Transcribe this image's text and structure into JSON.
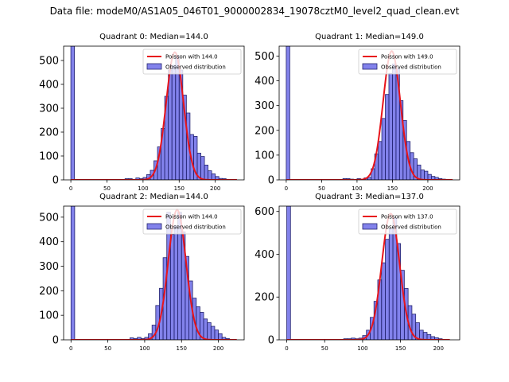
{
  "figure": {
    "suptitle": "Data file: modeM0/AS1A05_046T01_9000002834_19078cztM0_level2_quad_clean.evt"
  },
  "chart_data": [
    {
      "type": "bar",
      "title": "Quadrant 0: Median=144.0",
      "xlim": [
        -10,
        240
      ],
      "ylim": [
        0,
        560
      ],
      "xticks": [
        0,
        50,
        100,
        150,
        200
      ],
      "yticks": [
        0,
        100,
        200,
        300,
        400,
        500
      ],
      "bin_width": 5,
      "median": 144.0,
      "legend": {
        "position": "top-right",
        "line_label": "Poisson with 144.0",
        "bar_label": "Observed distribution"
      },
      "bins": [
        {
          "x": 0,
          "count": 560
        },
        {
          "x": 75,
          "count": 5
        },
        {
          "x": 80,
          "count": 5
        },
        {
          "x": 85,
          "count": 2
        },
        {
          "x": 90,
          "count": 8
        },
        {
          "x": 95,
          "count": 5
        },
        {
          "x": 100,
          "count": 10
        },
        {
          "x": 105,
          "count": 22
        },
        {
          "x": 110,
          "count": 40
        },
        {
          "x": 115,
          "count": 80
        },
        {
          "x": 120,
          "count": 138
        },
        {
          "x": 125,
          "count": 215
        },
        {
          "x": 130,
          "count": 350
        },
        {
          "x": 135,
          "count": 460
        },
        {
          "x": 140,
          "count": 480
        },
        {
          "x": 145,
          "count": 520
        },
        {
          "x": 150,
          "count": 460
        },
        {
          "x": 155,
          "count": 355
        },
        {
          "x": 160,
          "count": 280
        },
        {
          "x": 165,
          "count": 190
        },
        {
          "x": 170,
          "count": 182
        },
        {
          "x": 175,
          "count": 112
        },
        {
          "x": 180,
          "count": 98
        },
        {
          "x": 185,
          "count": 62
        },
        {
          "x": 190,
          "count": 38
        },
        {
          "x": 195,
          "count": 25
        },
        {
          "x": 200,
          "count": 14
        },
        {
          "x": 205,
          "count": 6
        },
        {
          "x": 210,
          "count": 5
        }
      ],
      "curve": {
        "mu": 144.0,
        "peak": 535,
        "x_range": [
          0,
          230
        ]
      }
    },
    {
      "type": "bar",
      "title": "Quadrant 1: Median=149.0",
      "xlim": [
        -10,
        245
      ],
      "ylim": [
        0,
        540
      ],
      "xticks": [
        0,
        50,
        100,
        150,
        200
      ],
      "yticks": [
        0,
        100,
        200,
        300,
        400,
        500
      ],
      "bin_width": 5,
      "median": 149.0,
      "legend": {
        "position": "top-right",
        "line_label": "Poisson with 149.0",
        "bar_label": "Observed distribution"
      },
      "bins": [
        {
          "x": 0,
          "count": 540
        },
        {
          "x": 80,
          "count": 5
        },
        {
          "x": 85,
          "count": 5
        },
        {
          "x": 90,
          "count": 3
        },
        {
          "x": 100,
          "count": 5
        },
        {
          "x": 110,
          "count": 8
        },
        {
          "x": 115,
          "count": 10
        },
        {
          "x": 120,
          "count": 45
        },
        {
          "x": 125,
          "count": 105
        },
        {
          "x": 130,
          "count": 155
        },
        {
          "x": 135,
          "count": 248
        },
        {
          "x": 140,
          "count": 345
        },
        {
          "x": 145,
          "count": 430
        },
        {
          "x": 150,
          "count": 468
        },
        {
          "x": 155,
          "count": 450
        },
        {
          "x": 160,
          "count": 320
        },
        {
          "x": 165,
          "count": 240
        },
        {
          "x": 170,
          "count": 155
        },
        {
          "x": 175,
          "count": 110
        },
        {
          "x": 180,
          "count": 85
        },
        {
          "x": 185,
          "count": 60
        },
        {
          "x": 190,
          "count": 40
        },
        {
          "x": 195,
          "count": 35
        },
        {
          "x": 200,
          "count": 22
        },
        {
          "x": 205,
          "count": 14
        },
        {
          "x": 210,
          "count": 10
        },
        {
          "x": 215,
          "count": 5
        },
        {
          "x": 220,
          "count": 3
        }
      ],
      "curve": {
        "mu": 149.0,
        "peak": 520,
        "x_range": [
          0,
          235
        ]
      }
    },
    {
      "type": "bar",
      "title": "Quadrant 2: Median=144.0",
      "xlim": [
        -10,
        235
      ],
      "ylim": [
        0,
        545
      ],
      "xticks": [
        0,
        50,
        100,
        150,
        200
      ],
      "yticks": [
        0,
        100,
        200,
        300,
        400,
        500
      ],
      "bin_width": 5,
      "median": 144.0,
      "legend": {
        "position": "top-right",
        "line_label": "Poisson with 144.0",
        "bar_label": "Observed distribution"
      },
      "bins": [
        {
          "x": 0,
          "count": 545
        },
        {
          "x": 80,
          "count": 8
        },
        {
          "x": 85,
          "count": 5
        },
        {
          "x": 90,
          "count": 10
        },
        {
          "x": 95,
          "count": 5
        },
        {
          "x": 100,
          "count": 10
        },
        {
          "x": 105,
          "count": 25
        },
        {
          "x": 110,
          "count": 60
        },
        {
          "x": 115,
          "count": 140
        },
        {
          "x": 120,
          "count": 210
        },
        {
          "x": 125,
          "count": 335
        },
        {
          "x": 130,
          "count": 520
        },
        {
          "x": 135,
          "count": 430
        },
        {
          "x": 140,
          "count": 465
        },
        {
          "x": 145,
          "count": 520
        },
        {
          "x": 150,
          "count": 440
        },
        {
          "x": 155,
          "count": 340
        },
        {
          "x": 160,
          "count": 240
        },
        {
          "x": 165,
          "count": 170
        },
        {
          "x": 170,
          "count": 135
        },
        {
          "x": 175,
          "count": 112
        },
        {
          "x": 180,
          "count": 85
        },
        {
          "x": 185,
          "count": 70
        },
        {
          "x": 190,
          "count": 55
        },
        {
          "x": 195,
          "count": 40
        },
        {
          "x": 200,
          "count": 25
        },
        {
          "x": 205,
          "count": 10
        },
        {
          "x": 210,
          "count": 5
        }
      ],
      "curve": {
        "mu": 144.0,
        "peak": 530,
        "x_range": [
          0,
          225
        ]
      }
    },
    {
      "type": "bar",
      "title": "Quadrant 3: Median=137.0",
      "xlim": [
        -10,
        228
      ],
      "ylim": [
        0,
        625
      ],
      "xticks": [
        0,
        50,
        100,
        150,
        200
      ],
      "yticks": [
        0,
        200,
        400,
        600
      ],
      "bin_width": 5,
      "median": 137.0,
      "legend": {
        "position": "top-right",
        "line_label": "Poisson with 137.0",
        "bar_label": "Observed distribution"
      },
      "bins": [
        {
          "x": 0,
          "count": 625
        },
        {
          "x": 75,
          "count": 5
        },
        {
          "x": 80,
          "count": 5
        },
        {
          "x": 85,
          "count": 8
        },
        {
          "x": 90,
          "count": 5
        },
        {
          "x": 95,
          "count": 8
        },
        {
          "x": 100,
          "count": 20
        },
        {
          "x": 105,
          "count": 45
        },
        {
          "x": 110,
          "count": 105
        },
        {
          "x": 115,
          "count": 180
        },
        {
          "x": 120,
          "count": 280
        },
        {
          "x": 125,
          "count": 360
        },
        {
          "x": 130,
          "count": 470
        },
        {
          "x": 135,
          "count": 520
        },
        {
          "x": 140,
          "count": 570
        },
        {
          "x": 145,
          "count": 450
        },
        {
          "x": 150,
          "count": 325
        },
        {
          "x": 155,
          "count": 240
        },
        {
          "x": 160,
          "count": 160
        },
        {
          "x": 165,
          "count": 120
        },
        {
          "x": 170,
          "count": 80
        },
        {
          "x": 175,
          "count": 45
        },
        {
          "x": 180,
          "count": 35
        },
        {
          "x": 185,
          "count": 25
        },
        {
          "x": 190,
          "count": 15
        },
        {
          "x": 195,
          "count": 10
        },
        {
          "x": 200,
          "count": 5
        }
      ],
      "curve": {
        "mu": 137.0,
        "peak": 590,
        "x_range": [
          0,
          215
        ]
      }
    }
  ]
}
